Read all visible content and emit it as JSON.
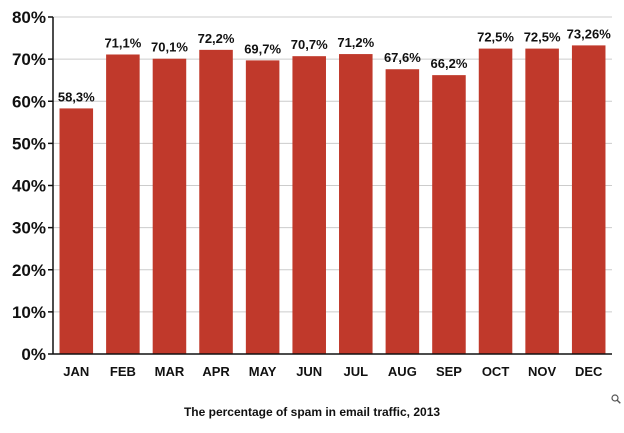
{
  "chart_data": {
    "type": "bar",
    "title": "The percentage of spam in email traffic, 2013",
    "xlabel": "",
    "ylabel": "",
    "categories": [
      "JAN",
      "FEB",
      "MAR",
      "APR",
      "MAY",
      "JUN",
      "JUL",
      "AUG",
      "SEP",
      "OCT",
      "NOV",
      "DEC"
    ],
    "values": [
      58.3,
      71.1,
      70.1,
      72.2,
      69.7,
      70.7,
      71.2,
      67.6,
      66.2,
      72.5,
      72.5,
      73.26
    ],
    "value_labels": [
      "58,3%",
      "71,1%",
      "70,1%",
      "72,2%",
      "69,7%",
      "70,7%",
      "71,2%",
      "67,6%",
      "66,2%",
      "72,5%",
      "72,5%",
      "73,26%"
    ],
    "ylim": [
      0,
      80
    ],
    "yticks": [
      0,
      10,
      20,
      30,
      40,
      50,
      60,
      70,
      80
    ],
    "ytick_labels": [
      "0%",
      "10%",
      "20%",
      "30%",
      "40%",
      "50%",
      "60%",
      "70%",
      "80%"
    ],
    "grid": true,
    "bar_color": "#c0392b",
    "grid_color": "#cccccc"
  },
  "icons": {
    "zoom": "zoom-icon"
  }
}
